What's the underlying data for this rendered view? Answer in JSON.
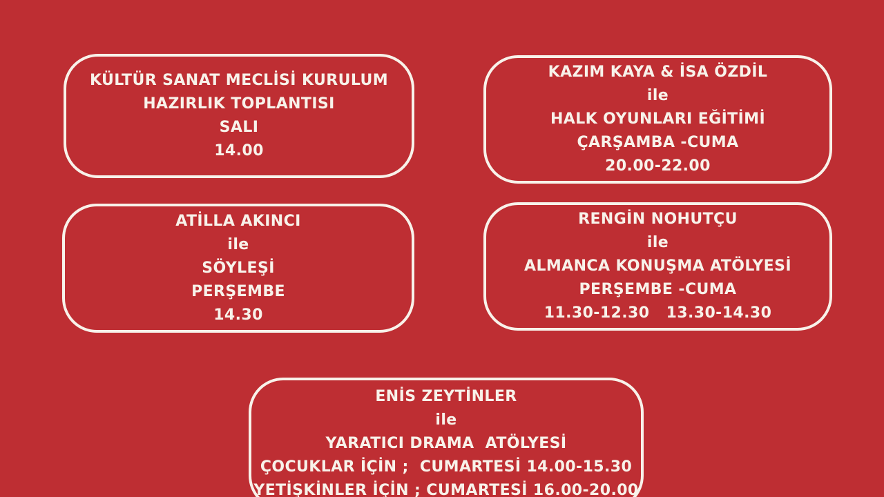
{
  "poster": {
    "background_color": "#be2e33",
    "text_color": "#f8f2ea",
    "cards": [
      {
        "name": "kultur-sanat-meclisi-kurulum",
        "lines": [
          "KÜLTÜR SANAT MECLİSİ KURULUM",
          "HAZIRLIK TOPLANTISI",
          "SALI",
          "14.00"
        ]
      },
      {
        "name": "halk-oyunlari-egitimi",
        "lines": [
          "KAZIM KAYA & İSA ÖZDİL",
          "ile",
          "HALK OYUNLARI EĞİTİMİ",
          "ÇARŞAMBA -CUMA",
          "20.00-22.00"
        ]
      },
      {
        "name": "soylesi",
        "lines": [
          "ATİLLA AKINCI",
          "ile",
          "SÖYLEŞİ",
          "PERŞEMBE",
          "14.30"
        ]
      },
      {
        "name": "almanca-konusma-atolyesi",
        "lines": [
          "RENGİN NOHUTÇU",
          "ile",
          "ALMANCA KONUŞMA ATÖLYESİ",
          "PERŞEMBE -CUMA",
          "11.30-12.30   13.30-14.30"
        ]
      },
      {
        "name": "yaratici-drama-atolyesi",
        "lines": [
          "ENİS ZEYTİNLER",
          "ile",
          "YARATICI DRAMA  ATÖLYESİ",
          "ÇOCUKLAR İÇİN ;  CUMARTESİ 14.00-15.30",
          "YETİŞKİNLER İÇİN ; CUMARTESİ 16.00-20.00"
        ]
      }
    ]
  }
}
